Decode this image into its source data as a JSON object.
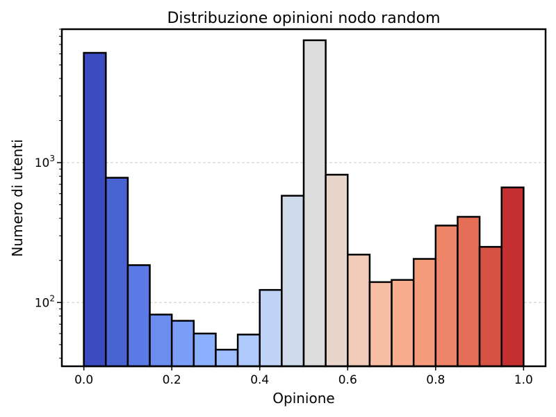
{
  "chart_data": {
    "type": "bar",
    "title": "Distribuzione opinioni nodo random",
    "xlabel": "Opinione",
    "ylabel": "Numero di utenti",
    "xlim": [
      -0.05,
      1.05
    ],
    "ylim": [
      35,
      9000
    ],
    "yscale": "log",
    "grid": "y-dashed",
    "bin_width": 0.05,
    "x_ticks": [
      "0.0",
      "0.2",
      "0.4",
      "0.6",
      "0.8",
      "1.0"
    ],
    "x_tick_values": [
      0,
      0.2,
      0.4,
      0.6,
      0.8,
      1.0
    ],
    "y_ticks": [
      {
        "value": 100,
        "base": "10",
        "exp": "2"
      },
      {
        "value": 1000,
        "base": "10",
        "exp": "3"
      }
    ],
    "bins": [
      {
        "x0": 0.0,
        "count": 6100,
        "color": "#3b4cc0"
      },
      {
        "x0": 0.05,
        "count": 780,
        "color": "#4a63d3"
      },
      {
        "x0": 0.1,
        "count": 185,
        "color": "#5b7ae5"
      },
      {
        "x0": 0.15,
        "count": 82,
        "color": "#6b8df0"
      },
      {
        "x0": 0.2,
        "count": 74,
        "color": "#7b9ff9"
      },
      {
        "x0": 0.25,
        "count": 60,
        "color": "#8db0fe"
      },
      {
        "x0": 0.3,
        "count": 46,
        "color": "#9ebeff"
      },
      {
        "x0": 0.35,
        "count": 59,
        "color": "#aec9fc"
      },
      {
        "x0": 0.4,
        "count": 123,
        "color": "#bfd3f6"
      },
      {
        "x0": 0.45,
        "count": 580,
        "color": "#cfdaea"
      },
      {
        "x0": 0.5,
        "count": 7500,
        "color": "#dddddd"
      },
      {
        "x0": 0.55,
        "count": 820,
        "color": "#e8d6cc"
      },
      {
        "x0": 0.6,
        "count": 220,
        "color": "#f1cbb8"
      },
      {
        "x0": 0.65,
        "count": 140,
        "color": "#f6bea2"
      },
      {
        "x0": 0.7,
        "count": 145,
        "color": "#f7ad8e"
      },
      {
        "x0": 0.75,
        "count": 205,
        "color": "#f59c7d"
      },
      {
        "x0": 0.8,
        "count": 355,
        "color": "#ee8468"
      },
      {
        "x0": 0.85,
        "count": 410,
        "color": "#e46e56"
      },
      {
        "x0": 0.9,
        "count": 250,
        "color": "#d65244"
      },
      {
        "x0": 0.95,
        "count": 665,
        "color": "#c43032"
      }
    ]
  }
}
